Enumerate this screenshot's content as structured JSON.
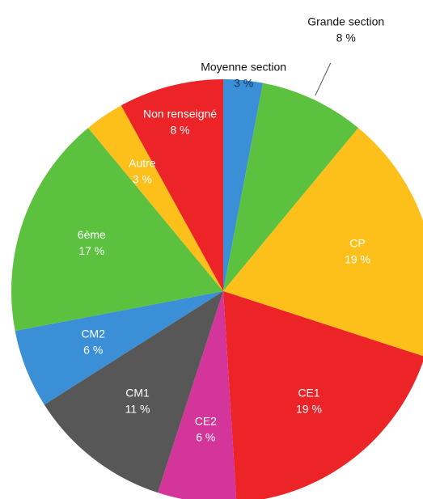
{
  "chart_data": {
    "type": "pie",
    "categories": [
      "Moyenne section",
      "Grande section",
      "CP",
      "CE1",
      "CE2",
      "CM1",
      "CM2",
      "6ème",
      "Autre",
      "Non renseigné"
    ],
    "values": [
      3,
      8,
      19,
      19,
      6,
      11,
      6,
      17,
      3,
      8
    ],
    "value_labels": [
      "3 %",
      "8 %",
      "19 %",
      "19 %",
      "6 %",
      "11 %",
      "6 %",
      "17 %",
      "3 %",
      "8 %"
    ],
    "colors": [
      "#3a8fd6",
      "#5cc13f",
      "#fdbf1a",
      "#ec2327",
      "#d4359a",
      "#575757",
      "#3a8fd6",
      "#5cc13f",
      "#fdbf1a",
      "#ec2327"
    ]
  }
}
